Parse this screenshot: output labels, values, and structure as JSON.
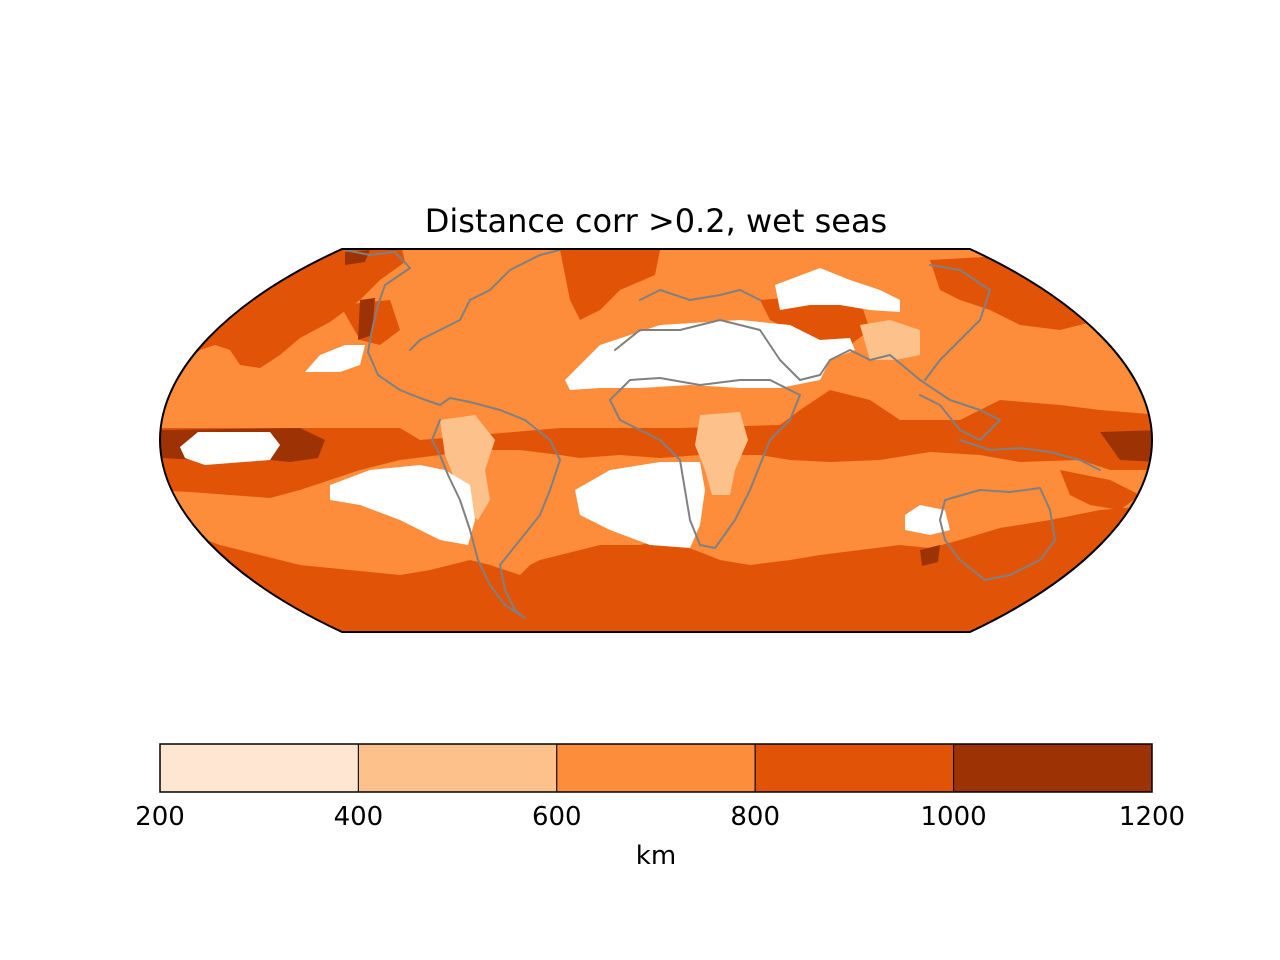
{
  "title": "Distance corr >0.2, wet seas",
  "colorbar": {
    "label": "km",
    "ticks": [
      "200",
      "400",
      "600",
      "800",
      "1000",
      "1200"
    ],
    "bins": [
      {
        "min": 200,
        "max": 400,
        "color": "#fee6d3"
      },
      {
        "min": 400,
        "max": 600,
        "color": "#fdc28c"
      },
      {
        "min": 600,
        "max": 800,
        "color": "#fd8c3b"
      },
      {
        "min": 800,
        "max": 1000,
        "color": "#e15407"
      },
      {
        "min": 1000,
        "max": 1200,
        "color": "#9d3205"
      }
    ]
  },
  "chart_data": {
    "type": "heatmap",
    "title": "Distance corr >0.2, wet seas",
    "projection": "Robinson",
    "colorbar_label": "km",
    "value_range": [
      200,
      1200
    ],
    "levels": [
      200,
      400,
      600,
      800,
      1000,
      1200
    ],
    "missing_color": "#ffffff",
    "coastline_color": "#808080"
  }
}
